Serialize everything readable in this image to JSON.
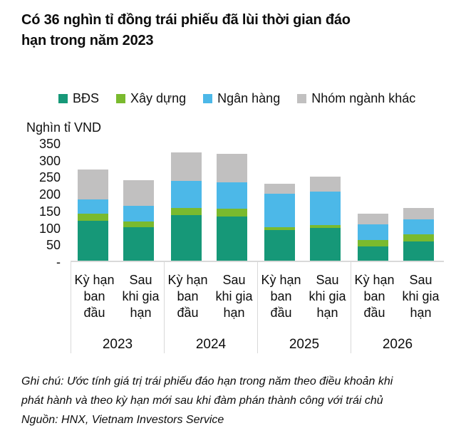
{
  "title": "Có 36 nghìn tỉ đồng trái phiếu đã lùi thời gian đáo\nhạn trong năm 2023",
  "footer": {
    "note": "Ghi chú: Ước tính giá trị trái phiếu đáo hạn trong năm theo điều khoản khi\nphát hành và theo kỳ hạn mới sau khi đàm phán thành công với trái chủ",
    "source": "Nguồn: HNX, Vietnam Investors Service"
  },
  "colors": {
    "bds": "#169878",
    "xay_dung": "#7ABA2E",
    "ngan_hang": "#4CB8E8",
    "khac": "#C1C0C0",
    "axis_line": "#d9d9d9"
  },
  "chart_data": {
    "type": "bar",
    "stacked": true,
    "title": "Có 36 nghìn tỉ đồng trái phiếu đã lùi thời gian đáo hạn trong năm 2023",
    "ylabel": "Nghìn tỉ VND",
    "xlabel": "",
    "ylim": [
      0,
      350
    ],
    "grid": false,
    "legend_position": "top",
    "yticks": [
      {
        "label": "350",
        "value": 350
      },
      {
        "label": "300",
        "value": 300
      },
      {
        "label": "250",
        "value": 250
      },
      {
        "label": "200",
        "value": 200
      },
      {
        "label": "150",
        "value": 150
      },
      {
        "label": "100",
        "value": 100
      },
      {
        "label": "50",
        "value": 50
      },
      {
        "label": "-",
        "value": 0
      }
    ],
    "groups": [
      {
        "year": "2023"
      },
      {
        "year": "2024"
      },
      {
        "year": "2025"
      },
      {
        "year": "2026"
      }
    ],
    "bar_labels": [
      {
        "text": "Kỳ hạn\nban\nđầu"
      },
      {
        "text": "Sau\nkhi gia\nhạn"
      }
    ],
    "categories": [
      "2023 Kỳ hạn ban đầu",
      "2023 Sau khi gia hạn",
      "2024 Kỳ hạn ban đầu",
      "2024 Sau khi gia hạn",
      "2025 Kỳ hạn ban đầu",
      "2025 Sau khi gia hạn",
      "2026 Kỳ hạn ban đầu",
      "2026 Sau khi gia hạn"
    ],
    "series": [
      {
        "name": "BĐS",
        "color": "#169878",
        "values": [
          118,
          99,
          134,
          131,
          90,
          96,
          42,
          56
        ]
      },
      {
        "name": "Xây dựng",
        "color": "#7ABA2E",
        "values": [
          22,
          16,
          23,
          22,
          9,
          10,
          19,
          22
        ]
      },
      {
        "name": "Ngân hàng",
        "color": "#4CB8E8",
        "values": [
          42,
          47,
          79,
          79,
          99,
          99,
          47,
          44
        ]
      },
      {
        "name": "Nhóm ngành khác",
        "color": "#C1C0C0",
        "values": [
          88,
          76,
          84,
          85,
          29,
          43,
          32,
          35
        ]
      }
    ],
    "totals": [
      270,
      238,
      320,
      317,
      227,
      248,
      140,
      157
    ]
  }
}
